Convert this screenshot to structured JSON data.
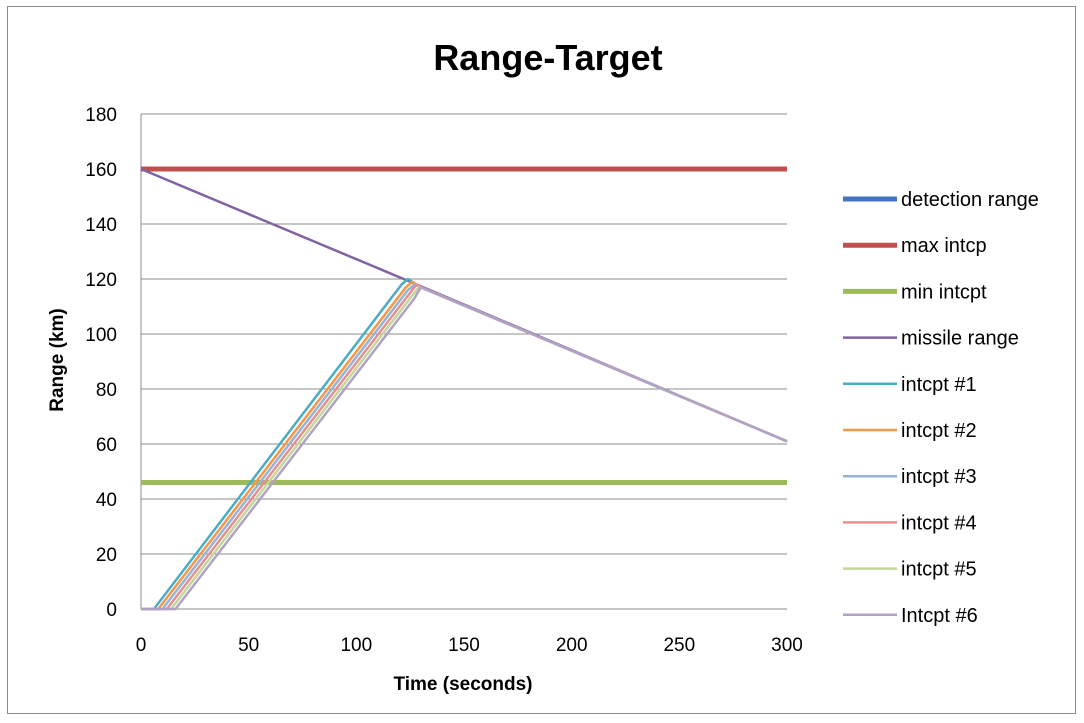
{
  "chart_data": {
    "type": "line",
    "title": "Range-Target",
    "xlabel": "Time (seconds)",
    "ylabel": "Range (km)",
    "xlim": [
      0,
      300
    ],
    "ylim": [
      0,
      180
    ],
    "x_ticks": [
      "0",
      "50",
      "100",
      "150",
      "200",
      "250",
      "300"
    ],
    "y_ticks": [
      "0",
      "20",
      "40",
      "60",
      "80",
      "100",
      "120",
      "140",
      "160",
      "180"
    ],
    "grid": "horizontal",
    "legend_position": "right",
    "series": [
      {
        "name": "detection range",
        "color": "#4472C4",
        "width": 5,
        "x": [
          0,
          300
        ],
        "y": [
          160,
          160
        ]
      },
      {
        "name": "max intcp",
        "color": "#C0504D",
        "width": 5,
        "x": [
          0,
          300
        ],
        "y": [
          160,
          160
        ]
      },
      {
        "name": "min intcpt",
        "color": "#9BBB59",
        "width": 5,
        "x": [
          0,
          300
        ],
        "y": [
          46,
          46
        ]
      },
      {
        "name": "missile range",
        "color": "#8064A2",
        "width": 2.5,
        "x": [
          0,
          122,
          300
        ],
        "y": [
          160,
          120,
          61
        ]
      },
      {
        "name": "intcpt #1",
        "color": "#4BACC6",
        "width": 2.5,
        "x": [
          0,
          6,
          121,
          124,
          130,
          300
        ],
        "y": [
          0,
          0,
          118,
          120,
          117,
          61
        ]
      },
      {
        "name": "intcpt #2",
        "color": "#F79646",
        "width": 2.5,
        "x": [
          0,
          8,
          123,
          126,
          130,
          300
        ],
        "y": [
          0,
          0,
          117,
          119,
          117,
          61
        ]
      },
      {
        "name": "intcpt #3",
        "color": "#95B3D7",
        "width": 2.5,
        "x": [
          0,
          10,
          124,
          127,
          130,
          300
        ],
        "y": [
          0,
          0,
          116,
          118,
          117,
          61
        ]
      },
      {
        "name": "intcpt #4",
        "color": "#E6908E",
        "width": 2.5,
        "x": [
          0,
          12,
          125,
          128,
          130,
          300
        ],
        "y": [
          0,
          0,
          115,
          118,
          117,
          61
        ]
      },
      {
        "name": "intcpt #5",
        "color": "#C3D69B",
        "width": 2.5,
        "x": [
          0,
          14,
          126,
          129,
          130,
          300
        ],
        "y": [
          0,
          0,
          114,
          117,
          117,
          61
        ]
      },
      {
        "name": "Intcpt #6",
        "color": "#B2A1C7",
        "width": 2.5,
        "x": [
          0,
          16,
          127,
          130,
          300
        ],
        "y": [
          0,
          0,
          113,
          117,
          61
        ]
      }
    ]
  }
}
